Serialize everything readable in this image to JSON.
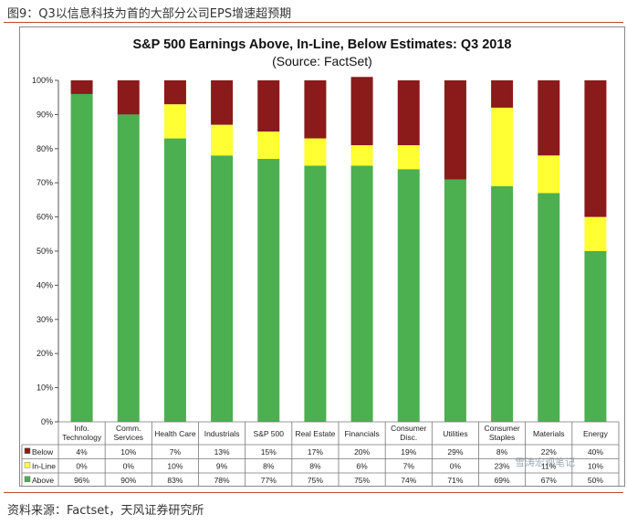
{
  "caption": "图9：Q3以信息科技为首的大部分公司EPS增速超预期",
  "source": "资料来源：Factset，天风证券研究所",
  "watermark": "雪涛宏观笔记",
  "colors": {
    "above": "#4caf50",
    "inline": "#ffff33",
    "below": "#8b1a1a",
    "accent": "#b84b30"
  },
  "chart_data": {
    "type": "bar",
    "stacked": true,
    "title": "S&P 500 Earnings Above, In-Line, Below Estimates: Q3 2018",
    "subtitle": "(Source: FactSet)",
    "ylim": [
      0,
      100
    ],
    "yticks": [
      "0%",
      "10%",
      "20%",
      "30%",
      "40%",
      "50%",
      "60%",
      "70%",
      "80%",
      "90%",
      "100%"
    ],
    "categories": [
      [
        "Info.",
        "Technology"
      ],
      [
        "Comm.",
        "Services"
      ],
      [
        "Health Care"
      ],
      [
        "Industrials"
      ],
      [
        "S&P 500"
      ],
      [
        "Real Estate"
      ],
      [
        "Financials"
      ],
      [
        "Consumer",
        "Disc."
      ],
      [
        "Utilities"
      ],
      [
        "Consumer",
        "Staples"
      ],
      [
        "Materials"
      ],
      [
        "Energy"
      ]
    ],
    "series": [
      {
        "name": "Above",
        "key": "above",
        "values": [
          96,
          90,
          83,
          78,
          77,
          75,
          75,
          74,
          71,
          69,
          67,
          50
        ]
      },
      {
        "name": "In-Line",
        "key": "inline",
        "values": [
          0,
          0,
          10,
          9,
          8,
          8,
          6,
          7,
          0,
          23,
          11,
          10
        ]
      },
      {
        "name": "Below",
        "key": "below",
        "values": [
          4,
          10,
          7,
          13,
          15,
          17,
          20,
          19,
          29,
          8,
          22,
          40
        ]
      }
    ],
    "table_rows": [
      {
        "name": "Below",
        "key": "below",
        "labels": [
          "4%",
          "10%",
          "7%",
          "13%",
          "15%",
          "17%",
          "20%",
          "19%",
          "29%",
          "8%",
          "22%",
          "40%"
        ]
      },
      {
        "name": "In-Line",
        "key": "inline",
        "labels": [
          "0%",
          "0%",
          "10%",
          "9%",
          "8%",
          "8%",
          "6%",
          "7%",
          "0%",
          "23%",
          "11%",
          "10%"
        ]
      },
      {
        "name": "Above",
        "key": "above",
        "labels": [
          "96%",
          "90%",
          "83%",
          "78%",
          "77%",
          "75%",
          "75%",
          "74%",
          "71%",
          "69%",
          "67%",
          "50%"
        ]
      }
    ]
  }
}
